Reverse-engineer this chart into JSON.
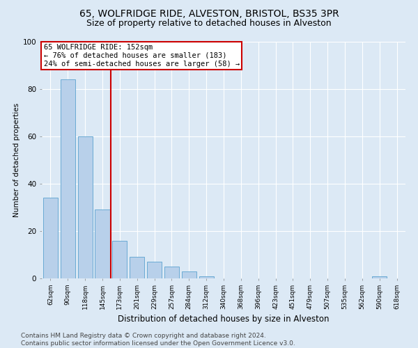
{
  "title1": "65, WOLFRIDGE RIDE, ALVESTON, BRISTOL, BS35 3PR",
  "title2": "Size of property relative to detached houses in Alveston",
  "xlabel": "Distribution of detached houses by size in Alveston",
  "ylabel": "Number of detached properties",
  "categories": [
    "62sqm",
    "90sqm",
    "118sqm",
    "145sqm",
    "173sqm",
    "201sqm",
    "229sqm",
    "257sqm",
    "284sqm",
    "312sqm",
    "340sqm",
    "368sqm",
    "396sqm",
    "423sqm",
    "451sqm",
    "479sqm",
    "507sqm",
    "535sqm",
    "562sqm",
    "590sqm",
    "618sqm"
  ],
  "values": [
    34,
    84,
    60,
    29,
    16,
    9,
    7,
    5,
    3,
    1,
    0,
    0,
    0,
    0,
    0,
    0,
    0,
    0,
    0,
    1,
    0
  ],
  "bar_color": "#b8d0ea",
  "bar_edge_color": "#6aaad4",
  "vline_x_index": 3.5,
  "annotation_line1": "65 WOLFRIDGE RIDE: 152sqm",
  "annotation_line2": "← 76% of detached houses are smaller (183)",
  "annotation_line3": "24% of semi-detached houses are larger (58) →",
  "vline_color": "#cc0000",
  "annotation_box_edge": "#cc0000",
  "ylim": [
    0,
    100
  ],
  "yticks": [
    0,
    20,
    40,
    60,
    80,
    100
  ],
  "background_color": "#dce9f5",
  "plot_bg_color": "#dce9f5",
  "footer": "Contains HM Land Registry data © Crown copyright and database right 2024.\nContains public sector information licensed under the Open Government Licence v3.0.",
  "title1_fontsize": 10,
  "title2_fontsize": 9,
  "annotation_fontsize": 7.5,
  "footer_fontsize": 6.5,
  "ylabel_fontsize": 7.5,
  "xlabel_fontsize": 8.5
}
